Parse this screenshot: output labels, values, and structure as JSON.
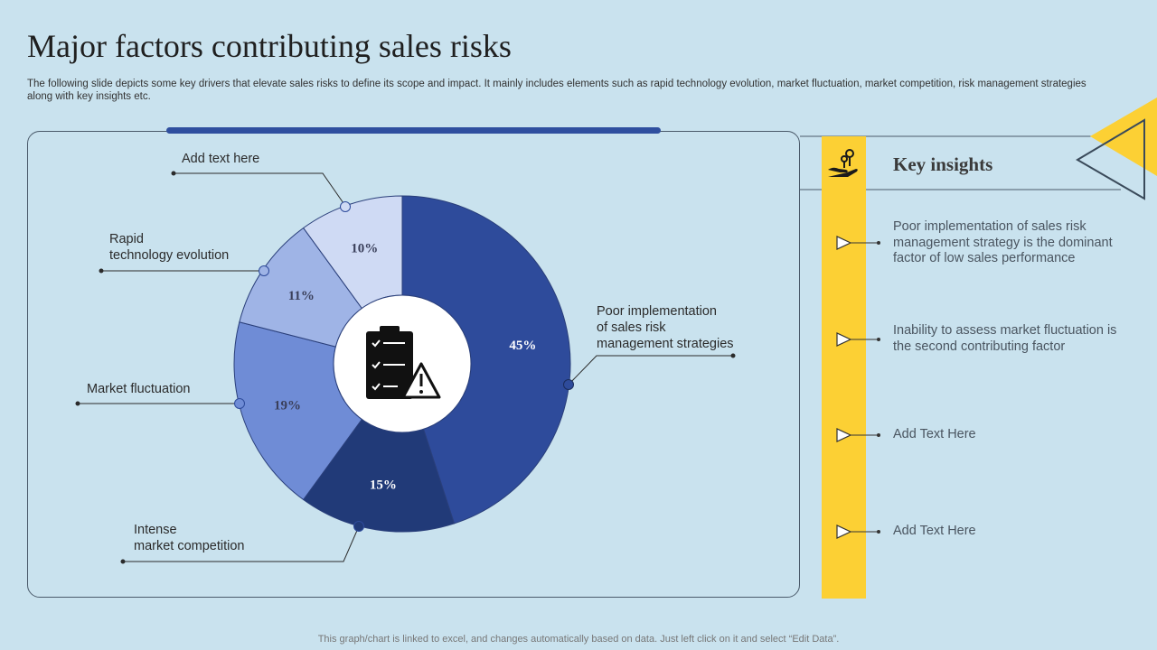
{
  "header": {
    "title": "Major factors contributing sales risks",
    "subtitle": "The following slide depicts some key drivers that elevate sales risks to define its scope and impact. It mainly includes elements such as rapid technology evolution, market fluctuation, market competition, risk management strategies along with key insights etc."
  },
  "chart_data": {
    "type": "pie",
    "donut": true,
    "slices": [
      {
        "label": "Poor implementation of sales risk management strategies",
        "value": 45,
        "display": "45%",
        "color": "#2e4b9b"
      },
      {
        "label": "Intense market competition",
        "value": 15,
        "display": "15%",
        "color": "#213a78"
      },
      {
        "label": "Market fluctuation",
        "value": 19,
        "display": "19%",
        "color": "#6f8cd6"
      },
      {
        "label": "Rapid technology evolution",
        "value": 11,
        "display": "11%",
        "color": "#9fb4e6"
      },
      {
        "label": "Add text here",
        "value": 10,
        "display": "10%",
        "color": "#cfdaf4"
      }
    ]
  },
  "callouts": {
    "add_text": "Add text here",
    "rapid_line1": "Rapid",
    "rapid_line2": "technology evolution",
    "market_fluctuation": "Market fluctuation",
    "intense_line1": "Intense",
    "intense_line2": "market competition",
    "poor_line1": "Poor implementation",
    "poor_line2": "of sales risk",
    "poor_line3": "management strategies"
  },
  "center_icon": "clipboard-warning-icon",
  "key_insights": {
    "title": "Key insights",
    "icon": "hand-keys-icon",
    "items": [
      "Poor implementation of sales risk management strategy is the dominant factor of low sales performance",
      "Inability to assess market fluctuation is the second contributing factor",
      "Add Text Here",
      "Add Text Here"
    ]
  },
  "footer": "This graph/chart is linked to excel, and changes automatically based on data. Just left click on it and select “Edit Data”."
}
